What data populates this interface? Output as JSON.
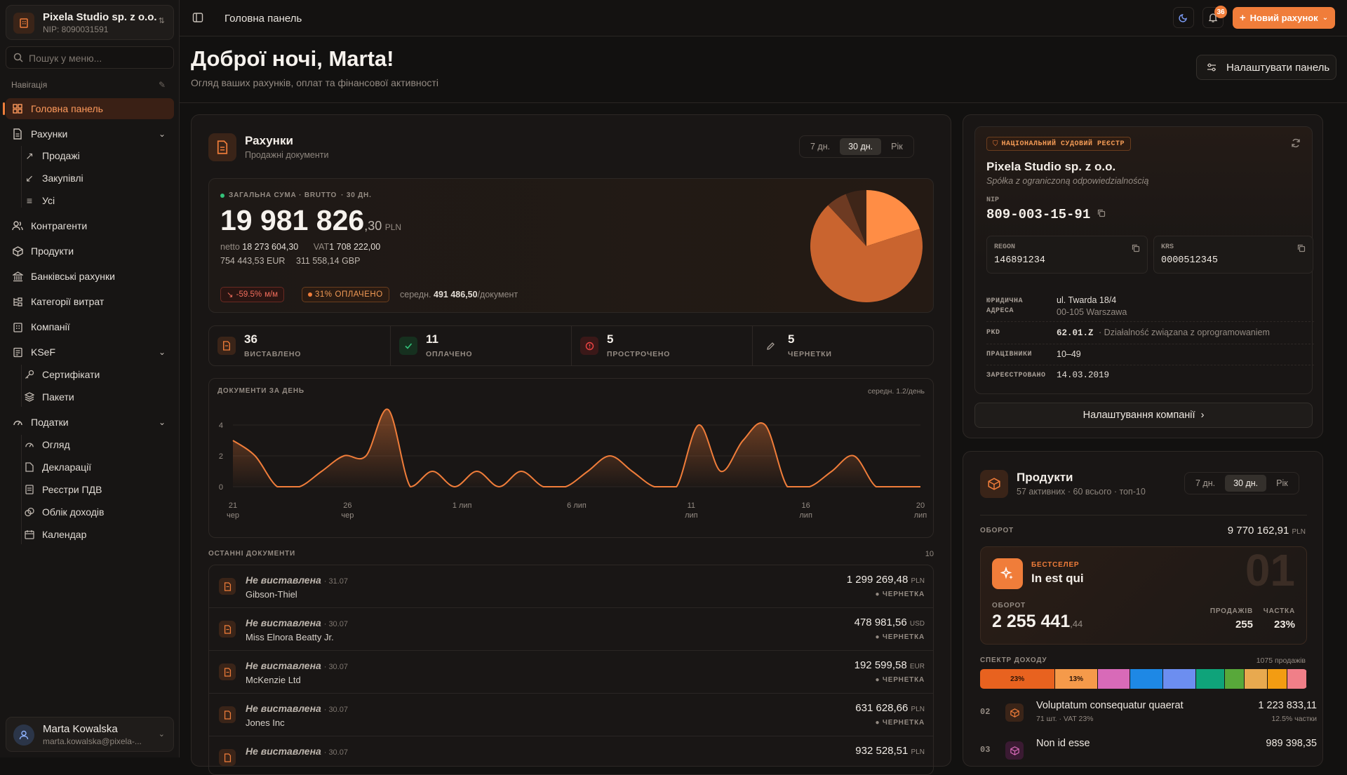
{
  "org": {
    "name": "Pixela Studio sp. z o.o.",
    "nip": "NIP: 8090031591"
  },
  "search": {
    "placeholder": "Пошук у меню..."
  },
  "nav": {
    "header": "Навігація",
    "items": [
      {
        "label": "Головна панель",
        "icon": "dashboard-icon",
        "active": true
      },
      {
        "label": "Рахунки",
        "icon": "invoice-icon"
      },
      {
        "label": "Продажі",
        "icon": "arrow-up-right-icon"
      },
      {
        "label": "Закупівлі",
        "icon": "arrow-down-left-icon"
      },
      {
        "label": "Усі",
        "icon": "filter-icon"
      },
      {
        "label": "Контрагенти",
        "icon": "users-icon"
      },
      {
        "label": "Продукти",
        "icon": "box-icon"
      },
      {
        "label": "Банківські рахунки",
        "icon": "bank-icon"
      },
      {
        "label": "Категорії витрат",
        "icon": "category-icon"
      },
      {
        "label": "Компанії",
        "icon": "building-icon"
      },
      {
        "label": "KSeF",
        "icon": "ksef-icon"
      },
      {
        "label": "Сертифікати",
        "icon": "key-icon"
      },
      {
        "label": "Пакети",
        "icon": "layers-icon"
      },
      {
        "label": "Податки",
        "icon": "gauge-icon"
      },
      {
        "label": "Огляд",
        "icon": "gauge-icon"
      },
      {
        "label": "Декларації",
        "icon": "file-icon"
      },
      {
        "label": "Реєстри ПДВ",
        "icon": "register-icon"
      },
      {
        "label": "Облік доходів",
        "icon": "coins-icon"
      },
      {
        "label": "Календар",
        "icon": "calendar-icon"
      }
    ]
  },
  "user": {
    "name": "Marta Kowalska",
    "email": "marta.kowalska@pixela-..."
  },
  "topbar": {
    "breadcrumb": "Головна панель",
    "notifications": "36",
    "new_invoice": "Новий рахунок"
  },
  "greeting": {
    "title": "Доброї ночі, Marta!",
    "subtitle": "Огляд ваших рахунків, оплат та фінансової активності",
    "customize": "Налаштувати панель"
  },
  "invoices": {
    "title": "Рахунки",
    "subtitle": "Продажні документи",
    "periods": [
      "7 дн.",
      "30 дн.",
      "Рік"
    ],
    "active_period": "30 дн.",
    "total_label": "ЗАГАЛЬНА СУМА · BRUTTO",
    "total_period": "· 30 ДН.",
    "total_int": "19 981 826",
    "total_dec": ",30",
    "total_cur": "PLN",
    "netto_label": "netto",
    "netto": "18 273 604,30",
    "vat_label": "VAT",
    "vat": "1 708 222,00",
    "eur": "754 443,53",
    "eur_label": "EUR",
    "gbp": "311 558,14",
    "gbp_label": "GBP",
    "trend": "-59.5%",
    "trend_unit": "м/м",
    "paid_pct": "31%",
    "paid_label": "ОПЛАЧЕНО",
    "avg_label": "середн.",
    "avg_value": "491 486,50",
    "avg_unit": "/документ",
    "pie": {
      "paid": 0.31,
      "colors": [
        "#ff8d45",
        "#c9642f",
        "#6d3a22",
        "#3e2518"
      ],
      "slices": [
        0.2,
        0.68,
        0.06,
        0.06
      ]
    },
    "stats": [
      {
        "n": "36",
        "label": "ВИСТАВЛЕНО",
        "icon": "invoice-icon",
        "color": "#f07d3a",
        "bg": "#3a2418"
      },
      {
        "n": "11",
        "label": "ОПЛАЧЕНО",
        "icon": "check-icon",
        "color": "#34c27a",
        "bg": "#16301f"
      },
      {
        "n": "5",
        "label": "ПРОСТРОЧЕНО",
        "icon": "alert-icon",
        "color": "#ef4444",
        "bg": "#3a1818"
      },
      {
        "n": "5",
        "label": "ЧЕРНЕТКИ",
        "icon": "pencil-icon",
        "color": "#a69d95",
        "bg": "transparent"
      }
    ]
  },
  "chart_data": {
    "type": "area",
    "title": "ДОКУМЕНТИ ЗА ДЕНЬ",
    "annotation": "середн. 1.2/день",
    "ylim": [
      0,
      5
    ],
    "yticks": [
      0,
      2,
      4
    ],
    "x_tick_labels": [
      [
        "21",
        "чер"
      ],
      [
        "26",
        "чер"
      ],
      [
        "1 лип",
        ""
      ],
      [
        "6 лип",
        ""
      ],
      [
        "11",
        "лип"
      ],
      [
        "16",
        "лип"
      ],
      [
        "20",
        "лип"
      ]
    ],
    "values": [
      3,
      2,
      0,
      0,
      1,
      2,
      2,
      5,
      0,
      1,
      0,
      1,
      0,
      1,
      0,
      0,
      1,
      2,
      1,
      0,
      0,
      4,
      1,
      3,
      4,
      0,
      0,
      1,
      2,
      0,
      0,
      0
    ]
  },
  "recent": {
    "title": "ОСТАННІ ДОКУМЕНТИ",
    "count": "10",
    "rows": [
      {
        "status": "Не виставлена",
        "date": "· 31.07",
        "client": "Gibson-Thiel",
        "amount": "1 299 269,48",
        "cur": "PLN",
        "doc": "ЧЕРНЕТКА"
      },
      {
        "status": "Не виставлена",
        "date": "· 30.07",
        "client": "Miss Elnora Beatty Jr.",
        "amount": "478 981,56",
        "cur": "USD",
        "doc": "ЧЕРНЕТКА"
      },
      {
        "status": "Не виставлена",
        "date": "· 30.07",
        "client": "McKenzie Ltd",
        "amount": "192 599,58",
        "cur": "EUR",
        "doc": "ЧЕРНЕТКА"
      },
      {
        "status": "Не виставлена",
        "date": "· 30.07",
        "client": "Jones Inc",
        "amount": "631 628,66",
        "cur": "PLN",
        "doc": "ЧЕРНЕТКА"
      },
      {
        "status": "Не виставлена",
        "date": "· 30.07",
        "client": "",
        "amount": "932 528,51",
        "cur": "PLN",
        "doc": ""
      }
    ]
  },
  "company": {
    "badge": "НАЦІОНАЛЬНИЙ СУДОВИЙ РЕЄСТР",
    "name": "Pixela Studio sp. z o.o.",
    "form": "Spółka z ograniczoną odpowiedzialnością",
    "nip_label": "NIP",
    "nip": "809-003-15-91",
    "regon_label": "REGON",
    "regon": "146891234",
    "krs_label": "KRS",
    "krs": "0000512345",
    "addr_label1": "ЮРИДИЧНА",
    "addr_label2": "АДРЕСА",
    "addr1": "ul. Twarda 18/4",
    "addr2": "00-105 Warszawa",
    "pkd_label": "PKD",
    "pkd_code": "62.01.Z",
    "pkd_desc": "· Działalność związana z oprogramowaniem",
    "emp_label": "ПРАЦІВНИКИ",
    "emp": "10–49",
    "reg_label": "ЗАРЕЄСТРОВАНО",
    "reg": "14.03.2019",
    "settings": "Налаштування компанії"
  },
  "products": {
    "title": "Продукти",
    "subtitle": "57 активних · 60 всього · топ-10",
    "periods": [
      "7 дн.",
      "30 дн.",
      "Рік"
    ],
    "active_period": "30 дн.",
    "turnover_label": "ОБОРОТ",
    "turnover": "9 770 162,91",
    "turnover_cur": "PLN",
    "best_badge": "БЕСТСЕЛЕР",
    "best_name": "In est qui",
    "best_rank": "01",
    "best_turn_label": "ОБОРОТ",
    "best_turn_int": "2 255 441",
    "best_turn_dec": ",44",
    "sales_label": "ПРОДАЖІВ",
    "sales": "255",
    "share_label": "ЧАСТКА",
    "share": "23%",
    "spectrum_label": "СПЕКТР ДОХОДУ",
    "spectrum_total": "1075 продажів",
    "spectrum": [
      {
        "w": 0.23,
        "c": "#e8621f",
        "label": "23%"
      },
      {
        "w": 0.13,
        "c": "#f59a4a",
        "label": "13%"
      },
      {
        "w": 0.1,
        "c": "#d86ab8",
        "label": ""
      },
      {
        "w": 0.1,
        "c": "#1e88e5",
        "label": ""
      },
      {
        "w": 0.1,
        "c": "#6c8ef0",
        "label": ""
      },
      {
        "w": 0.09,
        "c": "#0fa37a",
        "label": ""
      },
      {
        "w": 0.06,
        "c": "#58a83a",
        "label": ""
      },
      {
        "w": 0.07,
        "c": "#e8a94f",
        "label": ""
      },
      {
        "w": 0.06,
        "c": "#f39c12",
        "label": ""
      },
      {
        "w": 0.06,
        "c": "#f07f88",
        "label": ""
      }
    ],
    "rows": [
      {
        "rank": "02",
        "name": "Voluptatum consequatur quaerat",
        "meta": "71 шт. · VAT 23%",
        "amount": "1 223 833,11",
        "share": "12.5% частки",
        "color": "#f07d3a"
      },
      {
        "rank": "03",
        "name": "Non id esse",
        "meta": "",
        "amount": "989 398,35",
        "share": "",
        "color": "#d86ab8"
      }
    ]
  }
}
